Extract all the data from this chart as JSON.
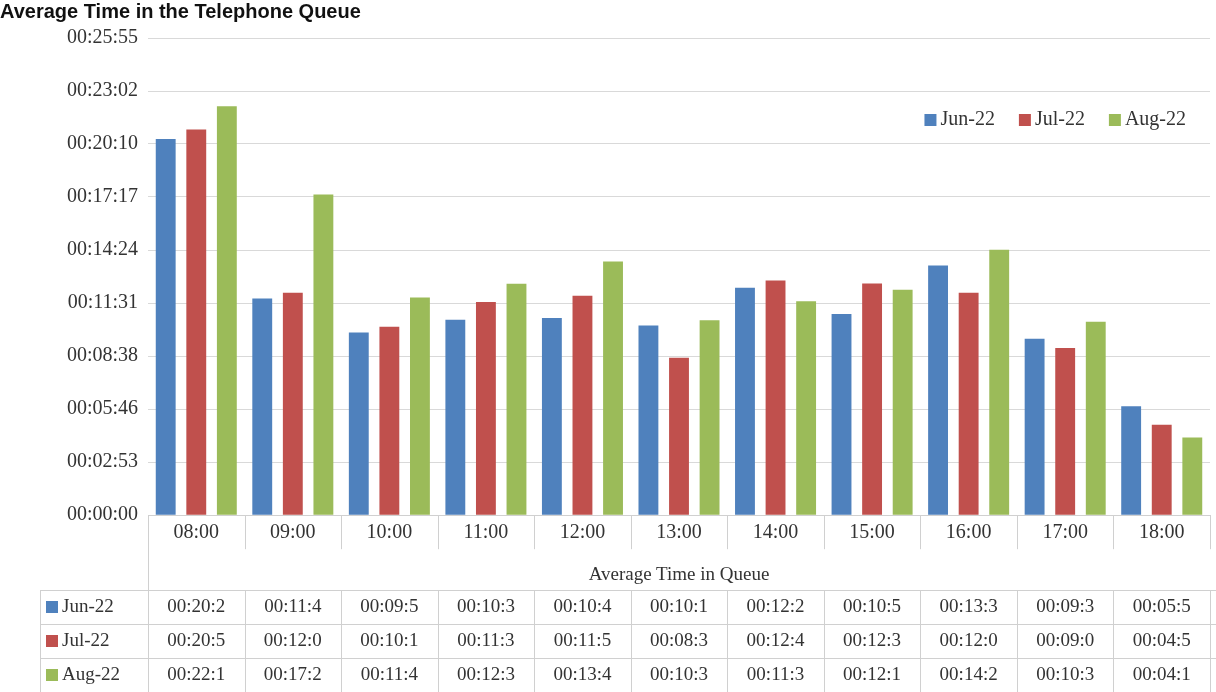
{
  "chart_data": {
    "type": "bar",
    "title": "Average Time in the Telephone Queue",
    "xlabel": "Average Time in Queue",
    "categories": [
      "08:00",
      "09:00",
      "10:00",
      "11:00",
      "12:00",
      "13:00",
      "14:00",
      "15:00",
      "16:00",
      "17:00",
      "18:00"
    ],
    "ylim": [
      0,
      1555
    ],
    "yticks": [
      {
        "value": 0,
        "label": "00:00:00"
      },
      {
        "value": 173,
        "label": "00:02:53"
      },
      {
        "value": 346,
        "label": "00:05:46"
      },
      {
        "value": 518,
        "label": "00:08:38"
      },
      {
        "value": 691,
        "label": "00:11:31"
      },
      {
        "value": 864,
        "label": "00:14:24"
      },
      {
        "value": 1037,
        "label": "00:17:17"
      },
      {
        "value": 1210,
        "label": "00:20:10"
      },
      {
        "value": 1382,
        "label": "00:23:02"
      },
      {
        "value": 1555,
        "label": "00:25:55"
      }
    ],
    "series": [
      {
        "name": "Jun-22",
        "color": "#4f81bd",
        "values": [
          1226,
          706,
          595,
          637,
          643,
          618,
          741,
          656,
          814,
          575,
          355
        ],
        "value_labels": [
          "00:20:2",
          "00:11:4",
          "00:09:5",
          "00:10:3",
          "00:10:4",
          "00:10:1",
          "00:12:2",
          "00:10:5",
          "00:13:3",
          "00:09:3",
          "00:05:5"
        ]
      },
      {
        "name": "Jul-22",
        "color": "#c0504d",
        "values": [
          1257,
          725,
          614,
          695,
          715,
          513,
          765,
          755,
          725,
          545,
          295
        ],
        "value_labels": [
          "00:20:5",
          "00:12:0",
          "00:10:1",
          "00:11:3",
          "00:11:5",
          "00:08:3",
          "00:12:4",
          "00:12:3",
          "00:12:0",
          "00:09:0",
          "00:04:5"
        ]
      },
      {
        "name": "Aug-22",
        "color": "#9bbb59",
        "values": [
          1333,
          1045,
          709,
          754,
          827,
          635,
          697,
          735,
          865,
          630,
          253
        ],
        "value_labels": [
          "00:22:1",
          "00:17:2",
          "00:11:4",
          "00:12:3",
          "00:13:4",
          "00:10:3",
          "00:11:3",
          "00:12:1",
          "00:14:2",
          "00:10:3",
          "00:04:1"
        ]
      }
    ],
    "grid": "y",
    "legend": "top right"
  }
}
